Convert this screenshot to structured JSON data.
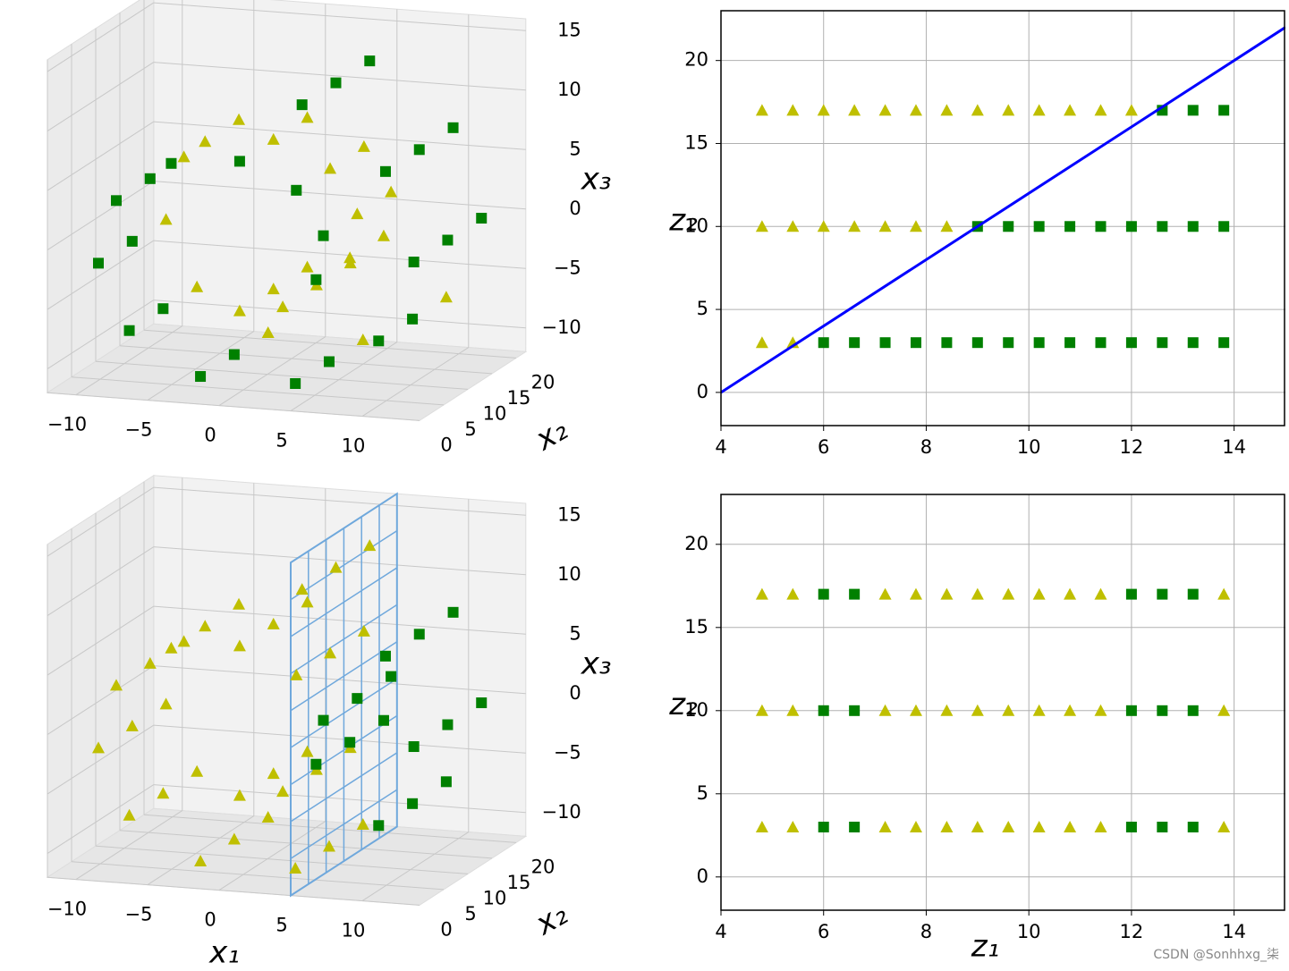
{
  "chart_data": [
    {
      "type": "scatter3d",
      "zlabel": "x₃",
      "ylabel": "x₂",
      "xlim": [
        -12,
        14
      ],
      "ylim": [
        0,
        22
      ],
      "zlim": [
        -12,
        16
      ],
      "xticks": [
        {
          "value": -10,
          "label": "−10"
        },
        {
          "value": -5,
          "label": "−5"
        },
        0,
        5,
        10
      ],
      "yticks": [
        0,
        5,
        10,
        15,
        20
      ],
      "zticks": [
        {
          "value": -10,
          "label": "−10"
        },
        {
          "value": -5,
          "label": "−5"
        },
        0,
        5,
        10,
        15
      ],
      "series": [
        {
          "color": "#bfbf00",
          "marker": "^",
          "x": [
            0.42,
            0.42,
            0.42,
            3.43,
            3.43,
            3.43,
            5.76,
            5.76,
            6.27,
            6.27,
            4.38,
            4.38,
            0.42,
            0.42,
            -4.36,
            -4.36,
            -8.2,
            -9.45,
            -7.29,
            -2.32,
            4.31,
            10.13
          ],
          "y": [
            3,
            10,
            17,
            3,
            10,
            17,
            10,
            17,
            10,
            17,
            10,
            17,
            10,
            17,
            10,
            17,
            17,
            17,
            17,
            17,
            17,
            17
          ],
          "z": [
            -4.78,
            -4.78,
            -4.78,
            -4.17,
            -4.17,
            -4.17,
            -1.68,
            -1.68,
            2.06,
            2.06,
            5.71,
            5.71,
            7.79,
            7.79,
            7.18,
            7.18,
            3.71,
            -1.67,
            -7.14,
            -10.55,
            -10.55,
            -6.44
          ]
        },
        {
          "color": "#008000",
          "marker": "s",
          "x": [
            5.76,
            6.27,
            4.38,
            0.42,
            -4.36,
            -8.2,
            -8.2,
            -9.45,
            -9.45,
            -7.29,
            -7.29,
            -2.32,
            -2.32,
            4.31,
            4.31,
            10.13,
            10.13,
            12.59,
            12.59,
            12.59,
            10.61,
            10.61,
            10.61,
            4.78,
            4.78,
            4.78
          ],
          "y": [
            3,
            3,
            3,
            3,
            3,
            3,
            10,
            3,
            10,
            3,
            10,
            3,
            10,
            3,
            10,
            3,
            10,
            3,
            10,
            17,
            3,
            10,
            17,
            3,
            10,
            17
          ],
          "z": [
            -1.68,
            2.06,
            5.71,
            7.79,
            7.18,
            3.71,
            3.71,
            -1.67,
            -1.67,
            -7.14,
            -7.14,
            -10.55,
            -10.55,
            -10.55,
            -10.55,
            -6.44,
            -6.44,
            0.42,
            0.42,
            0.42,
            7.85,
            7.85,
            7.85,
            12.94,
            12.94,
            12.94
          ]
        }
      ]
    },
    {
      "type": "scatter",
      "ylabel": "z₂",
      "xlim": [
        4,
        15
      ],
      "ylim": [
        -2,
        23
      ],
      "xticks": [
        4,
        6,
        8,
        10,
        12,
        14
      ],
      "yticks": [
        0,
        5,
        10,
        15,
        20
      ],
      "grid": true,
      "series": [
        {
          "color": "#bfbf00",
          "marker": "^",
          "x": [
            4.8,
            4.8,
            4.8,
            5.4,
            5.4,
            5.4,
            6.0,
            6.0,
            6.6,
            6.6,
            7.2,
            7.2,
            7.8,
            7.8,
            8.4,
            8.4,
            9.0,
            9.6,
            10.2,
            10.8,
            11.4,
            12.0
          ],
          "y": [
            3,
            10,
            17,
            3,
            10,
            17,
            10,
            17,
            10,
            17,
            10,
            17,
            10,
            17,
            10,
            17,
            17,
            17,
            17,
            17,
            17,
            17
          ]
        },
        {
          "color": "#008000",
          "marker": "s",
          "x": [
            6.0,
            6.6,
            7.2,
            7.8,
            8.4,
            9.0,
            9.0,
            9.6,
            9.6,
            10.2,
            10.2,
            10.8,
            10.8,
            11.4,
            11.4,
            12.0,
            12.0,
            12.6,
            12.6,
            12.6,
            13.2,
            13.2,
            13.2,
            13.8,
            13.8,
            13.8
          ],
          "y": [
            3,
            3,
            3,
            3,
            3,
            3,
            10,
            3,
            10,
            3,
            10,
            3,
            10,
            3,
            10,
            3,
            10,
            3,
            10,
            17,
            3,
            10,
            17,
            3,
            10,
            17
          ]
        }
      ],
      "line": {
        "color": "#0000ff",
        "x": [
          4,
          15
        ],
        "y": [
          0,
          22
        ]
      }
    },
    {
      "type": "scatter3d",
      "zlabel": "x₃",
      "ylabel": "x₂",
      "xlabel": "x₁",
      "xlim": [
        -12,
        14
      ],
      "ylim": [
        0,
        22
      ],
      "zlim": [
        -12,
        16
      ],
      "xticks": [
        {
          "value": -10,
          "label": "−10"
        },
        {
          "value": -5,
          "label": "−5"
        },
        0,
        5,
        10
      ],
      "yticks": [
        0,
        5,
        10,
        15,
        20
      ],
      "zticks": [
        {
          "value": -10,
          "label": "−10"
        },
        {
          "value": -5,
          "label": "−5"
        },
        0,
        5,
        10,
        15
      ],
      "plane_x": 5,
      "plane_color": "#6fa8dc",
      "series": [
        {
          "color": "#bfbf00",
          "marker": "^",
          "x": [
            0.42,
            0.42,
            0.42,
            3.43,
            3.43,
            3.43,
            4.38,
            4.38,
            4.38,
            0.42,
            0.42,
            0.42,
            -4.36,
            -4.36,
            -4.36,
            -8.2,
            -8.2,
            -8.2,
            -9.45,
            -9.45,
            -9.45,
            -7.29,
            -7.29,
            -7.29,
            -2.32,
            -2.32,
            -2.32,
            4.31,
            4.31,
            4.31,
            4.78,
            4.78,
            4.78
          ],
          "y": [
            3,
            10,
            17,
            3,
            10,
            17,
            3,
            10,
            17,
            3,
            10,
            17,
            3,
            10,
            17,
            3,
            10,
            17,
            3,
            10,
            17,
            3,
            10,
            17,
            3,
            10,
            17,
            3,
            10,
            17,
            3,
            10,
            17
          ],
          "z": [
            -4.78,
            -4.78,
            -4.78,
            -4.17,
            -4.17,
            -4.17,
            5.71,
            5.71,
            5.71,
            7.79,
            7.79,
            7.79,
            7.18,
            7.18,
            7.18,
            3.71,
            3.71,
            3.71,
            -1.67,
            -1.67,
            -1.67,
            -7.14,
            -7.14,
            -7.14,
            -10.55,
            -10.55,
            -10.55,
            -10.55,
            -10.55,
            -10.55,
            12.94,
            12.94,
            12.94
          ]
        },
        {
          "color": "#008000",
          "marker": "s",
          "x": [
            5.76,
            5.76,
            5.76,
            6.27,
            6.27,
            6.27,
            10.13,
            10.13,
            10.13,
            12.59,
            12.59,
            12.59,
            10.61,
            10.61,
            10.61
          ],
          "y": [
            3,
            10,
            17,
            3,
            10,
            17,
            3,
            10,
            17,
            3,
            10,
            17,
            3,
            10,
            17
          ],
          "z": [
            -1.68,
            -1.68,
            -1.68,
            2.06,
            2.06,
            2.06,
            -6.44,
            -6.44,
            -6.44,
            0.42,
            0.42,
            0.42,
            7.85,
            7.85,
            7.85
          ]
        }
      ]
    },
    {
      "type": "scatter",
      "ylabel": "z₂",
      "xlabel": "z₁",
      "xlim": [
        4,
        15
      ],
      "ylim": [
        -2,
        23
      ],
      "xticks": [
        4,
        6,
        8,
        10,
        12,
        14
      ],
      "yticks": [
        0,
        5,
        10,
        15,
        20
      ],
      "grid": true,
      "series": [
        {
          "color": "#bfbf00",
          "marker": "^",
          "x": [
            4.8,
            4.8,
            4.8,
            5.4,
            5.4,
            5.4,
            7.2,
            7.2,
            7.2,
            7.8,
            7.8,
            7.8,
            8.4,
            8.4,
            8.4,
            9.0,
            9.0,
            9.0,
            9.6,
            9.6,
            9.6,
            10.2,
            10.2,
            10.2,
            10.8,
            10.8,
            10.8,
            11.4,
            11.4,
            11.4,
            13.8,
            13.8,
            13.8
          ],
          "y": [
            3,
            10,
            17,
            3,
            10,
            17,
            3,
            10,
            17,
            3,
            10,
            17,
            3,
            10,
            17,
            3,
            10,
            17,
            3,
            10,
            17,
            3,
            10,
            17,
            3,
            10,
            17,
            3,
            10,
            17,
            3,
            10,
            17
          ]
        },
        {
          "color": "#008000",
          "marker": "s",
          "x": [
            6.0,
            6.0,
            6.0,
            6.6,
            6.6,
            6.6,
            12.0,
            12.0,
            12.0,
            12.6,
            12.6,
            12.6,
            13.2,
            13.2,
            13.2
          ],
          "y": [
            3,
            10,
            17,
            3,
            10,
            17,
            3,
            10,
            17,
            3,
            10,
            17,
            3,
            10,
            17
          ]
        }
      ]
    }
  ],
  "watermark": "CSDN @Sonhhxg_柒"
}
